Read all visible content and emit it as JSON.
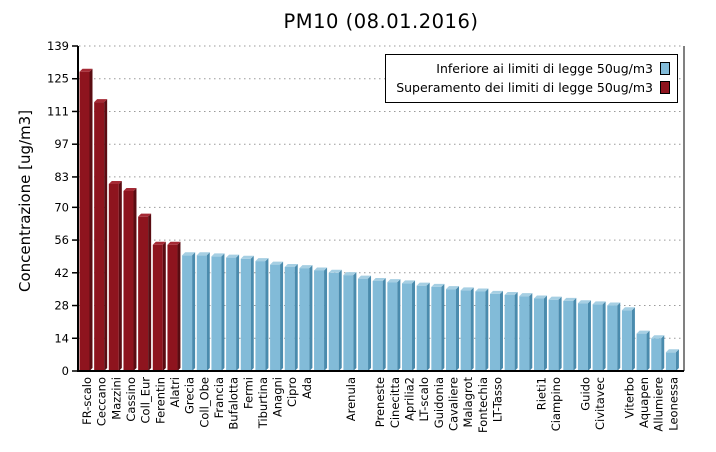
{
  "chart_data": {
    "type": "bar",
    "title": "PM10 (08.01.2016)",
    "ylabel": "Concentrazione [ug/m3]",
    "ylim": [
      0,
      139
    ],
    "yticks": [
      0,
      14,
      28,
      42,
      56,
      70,
      83,
      97,
      111,
      125,
      139
    ],
    "grid": "horizontal dotted gridline at each y tick",
    "legend_position": "top-right",
    "legend": {
      "items": [
        {
          "label": "Inferiore ai limiti di legge 50ug/m3",
          "color": "#82BBD8"
        },
        {
          "label": "Superamento dei limiti di legge 50ug/m3",
          "color": "#8E141E"
        }
      ]
    },
    "colors": {
      "below": {
        "face": "#82BBD8",
        "side": "#4A8BAD",
        "top": "#A6CFE3"
      },
      "above": {
        "face": "#8E141E",
        "side": "#5A0C12",
        "top": "#A52A35"
      },
      "grid": "#9a9a9a",
      "axis": "#000000"
    },
    "bars": [
      {
        "label": "FR-scalo",
        "value": 128,
        "over_limit": true
      },
      {
        "label": "Ceccano",
        "value": 115,
        "over_limit": true
      },
      {
        "label": "Mazzini",
        "value": 80,
        "over_limit": true
      },
      {
        "label": "Cassino",
        "value": 77,
        "over_limit": true
      },
      {
        "label": "Coll_Eur",
        "value": 66,
        "over_limit": true
      },
      {
        "label": "Ferentin",
        "value": 54,
        "over_limit": true
      },
      {
        "label": "Alatri",
        "value": 54,
        "over_limit": true
      },
      {
        "label": "Grecia",
        "value": 49.5,
        "over_limit": false
      },
      {
        "label": "Coll_Obe",
        "value": 49.5,
        "over_limit": false
      },
      {
        "label": "Francia",
        "value": 49,
        "over_limit": false
      },
      {
        "label": "Bufalotta",
        "value": 48.5,
        "over_limit": false
      },
      {
        "label": "Fermi",
        "value": 48,
        "over_limit": false
      },
      {
        "label": "Tiburtina",
        "value": 47,
        "over_limit": false
      },
      {
        "label": "Anagni",
        "value": 45.5,
        "over_limit": false
      },
      {
        "label": "Cipro",
        "value": 44.5,
        "over_limit": false
      },
      {
        "label": "Ada",
        "value": 44,
        "over_limit": false
      },
      {
        "label": "",
        "value": 43,
        "over_limit": false
      },
      {
        "label": "",
        "value": 42,
        "over_limit": false
      },
      {
        "label": "Arenula",
        "value": 41,
        "over_limit": false
      },
      {
        "label": "",
        "value": 39.5,
        "over_limit": false
      },
      {
        "label": "Preneste",
        "value": 38.5,
        "over_limit": false
      },
      {
        "label": "Cinecitta",
        "value": 38,
        "over_limit": false
      },
      {
        "label": "Aprilia2",
        "value": 37.5,
        "over_limit": false
      },
      {
        "label": "LT-scalo",
        "value": 36.5,
        "over_limit": false
      },
      {
        "label": "Guidonia",
        "value": 36,
        "over_limit": false
      },
      {
        "label": "Cavaliere",
        "value": 35,
        "over_limit": false
      },
      {
        "label": "Malagrot",
        "value": 34.5,
        "over_limit": false
      },
      {
        "label": "Fontechia",
        "value": 34,
        "over_limit": false
      },
      {
        "label": "LT-Tasso",
        "value": 33,
        "over_limit": false
      },
      {
        "label": "",
        "value": 32.5,
        "over_limit": false
      },
      {
        "label": "",
        "value": 32,
        "over_limit": false
      },
      {
        "label": "Rieti1",
        "value": 31,
        "over_limit": false
      },
      {
        "label": "Ciampino",
        "value": 30.5,
        "over_limit": false
      },
      {
        "label": "",
        "value": 30,
        "over_limit": false
      },
      {
        "label": "Guido",
        "value": 29,
        "over_limit": false
      },
      {
        "label": "Civitavec",
        "value": 28.5,
        "over_limit": false
      },
      {
        "label": "",
        "value": 28,
        "over_limit": false
      },
      {
        "label": "Viterbo",
        "value": 26,
        "over_limit": false
      },
      {
        "label": "Aquapen",
        "value": 16,
        "over_limit": false
      },
      {
        "label": "Allumiere",
        "value": 14,
        "over_limit": false
      },
      {
        "label": "Leonessa",
        "value": 8,
        "over_limit": false
      }
    ]
  }
}
